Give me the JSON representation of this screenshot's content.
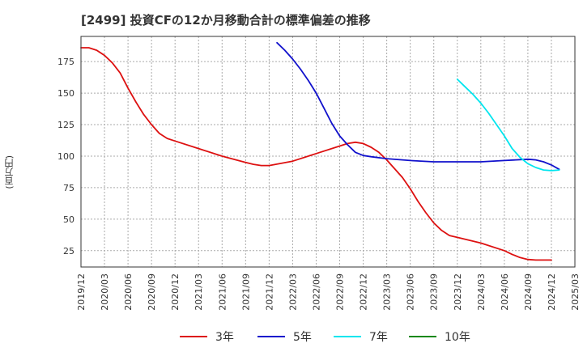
{
  "chart_data": {
    "type": "line",
    "title": "[2499]  投資CFの12か月移動合計の標準偏差の推移",
    "ylabel": "(百万円)",
    "ylim": [
      12,
      195
    ],
    "yticks": [
      25,
      50,
      75,
      100,
      125,
      150,
      175
    ],
    "xticks": [
      "2019/12",
      "2020/03",
      "2020/06",
      "2020/09",
      "2020/12",
      "2021/03",
      "2021/06",
      "2021/09",
      "2021/12",
      "2022/03",
      "2022/06",
      "2022/09",
      "2022/12",
      "2023/03",
      "2023/06",
      "2023/09",
      "2023/12",
      "2024/03",
      "2024/06",
      "2024/09",
      "2024/12",
      "2025/03"
    ],
    "grid": true,
    "legend_position": "bottom",
    "series": [
      {
        "name": "3年",
        "color": "#dd1111",
        "points": [
          [
            "2019/12",
            186
          ],
          [
            "2020/01",
            186
          ],
          [
            "2020/02",
            184
          ],
          [
            "2020/03",
            180
          ],
          [
            "2020/04",
            174
          ],
          [
            "2020/05",
            166
          ],
          [
            "2020/06",
            154
          ],
          [
            "2020/07",
            143
          ],
          [
            "2020/08",
            133
          ],
          [
            "2020/09",
            125
          ],
          [
            "2020/10",
            118
          ],
          [
            "2020/11",
            114
          ],
          [
            "2020/12",
            112
          ],
          [
            "2021/03",
            106
          ],
          [
            "2021/06",
            100
          ],
          [
            "2021/09",
            95
          ],
          [
            "2021/10",
            93.5
          ],
          [
            "2021/11",
            92.5
          ],
          [
            "2021/12",
            92.5
          ],
          [
            "2022/03",
            96
          ],
          [
            "2022/06",
            102
          ],
          [
            "2022/09",
            108
          ],
          [
            "2022/10",
            110
          ],
          [
            "2022/11",
            111
          ],
          [
            "2022/12",
            110
          ],
          [
            "2023/01",
            107
          ],
          [
            "2023/02",
            103
          ],
          [
            "2023/03",
            97
          ],
          [
            "2023/04",
            90
          ],
          [
            "2023/05",
            83
          ],
          [
            "2023/06",
            74
          ],
          [
            "2023/07",
            64
          ],
          [
            "2023/08",
            55
          ],
          [
            "2023/09",
            47
          ],
          [
            "2023/10",
            41
          ],
          [
            "2023/11",
            37
          ],
          [
            "2023/12",
            35.5
          ],
          [
            "2024/03",
            31
          ],
          [
            "2024/06",
            25
          ],
          [
            "2024/07",
            22
          ],
          [
            "2024/08",
            19.5
          ],
          [
            "2024/09",
            18
          ],
          [
            "2024/10",
            17.5
          ],
          [
            "2024/11",
            17.5
          ],
          [
            "2024/12",
            17.5
          ]
        ]
      },
      {
        "name": "5年",
        "color": "#1111cc",
        "points": [
          [
            "2022/01",
            190
          ],
          [
            "2022/02",
            184
          ],
          [
            "2022/03",
            177
          ],
          [
            "2022/04",
            169
          ],
          [
            "2022/05",
            160
          ],
          [
            "2022/06",
            150
          ],
          [
            "2022/07",
            138
          ],
          [
            "2022/08",
            126
          ],
          [
            "2022/09",
            116
          ],
          [
            "2022/10",
            109
          ],
          [
            "2022/11",
            103
          ],
          [
            "2022/12",
            100.5
          ],
          [
            "2023/01",
            99.5
          ],
          [
            "2023/03",
            98
          ],
          [
            "2023/06",
            96.5
          ],
          [
            "2023/09",
            95.5
          ],
          [
            "2023/12",
            95.5
          ],
          [
            "2024/03",
            95.5
          ],
          [
            "2024/06",
            96.5
          ],
          [
            "2024/09",
            97.5
          ],
          [
            "2024/10",
            97
          ],
          [
            "2024/11",
            95.5
          ],
          [
            "2024/12",
            93
          ],
          [
            "2025/01",
            89.5
          ]
        ]
      },
      {
        "name": "7年",
        "color": "#00e5ee",
        "points": [
          [
            "2023/12",
            161
          ],
          [
            "2024/01",
            155
          ],
          [
            "2024/02",
            149
          ],
          [
            "2024/03",
            142
          ],
          [
            "2024/04",
            134
          ],
          [
            "2024/05",
            125
          ],
          [
            "2024/06",
            116
          ],
          [
            "2024/07",
            106
          ],
          [
            "2024/08",
            99
          ],
          [
            "2024/09",
            94
          ],
          [
            "2024/10",
            91
          ],
          [
            "2024/11",
            89
          ],
          [
            "2024/12",
            88.5
          ],
          [
            "2025/01",
            89
          ]
        ]
      },
      {
        "name": "10年",
        "color": "#118811",
        "points": []
      }
    ]
  }
}
